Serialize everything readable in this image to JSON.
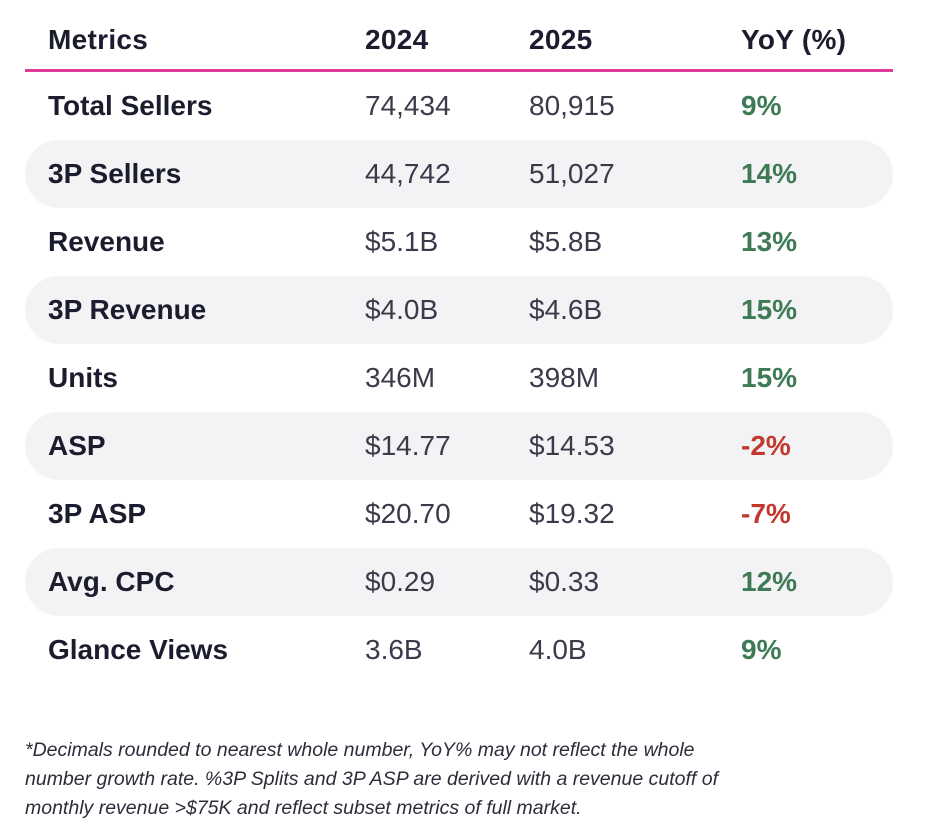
{
  "table": {
    "headers": [
      "Metrics",
      "2024",
      "2025",
      "YoY (%)"
    ],
    "rows": [
      {
        "metric": "Total Sellers",
        "y2024": "74,434",
        "y2025": "80,915",
        "yoy": "9%",
        "trend": "positive"
      },
      {
        "metric": "3P Sellers",
        "y2024": "44,742",
        "y2025": "51,027",
        "yoy": "14%",
        "trend": "positive"
      },
      {
        "metric": "Revenue",
        "y2024": "$5.1B",
        "y2025": "$5.8B",
        "yoy": "13%",
        "trend": "positive"
      },
      {
        "metric": "3P Revenue",
        "y2024": "$4.0B",
        "y2025": "$4.6B",
        "yoy": "15%",
        "trend": "positive"
      },
      {
        "metric": "Units",
        "y2024": "346M",
        "y2025": "398M",
        "yoy": "15%",
        "trend": "positive"
      },
      {
        "metric": "ASP",
        "y2024": "$14.77",
        "y2025": "$14.53",
        "yoy": "-2%",
        "trend": "negative"
      },
      {
        "metric": "3P ASP",
        "y2024": "$20.70",
        "y2025": "$19.32",
        "yoy": "-7%",
        "trend": "negative"
      },
      {
        "metric": "Avg. CPC",
        "y2024": "$0.29",
        "y2025": "$0.33",
        "yoy": "12%",
        "trend": "positive"
      },
      {
        "metric": "Glance Views",
        "y2024": "3.6B",
        "y2025": "4.0B",
        "yoy": "9%",
        "trend": "positive"
      }
    ]
  },
  "footnote": {
    "lines": [
      "*Decimals rounded to nearest whole number, YoY% may not reflect the whole",
      "number growth rate. %3P Splits and 3P ASP are derived with a revenue cutoff of",
      "monthly revenue >$75K and reflect subset metrics  of full market."
    ]
  },
  "colors": {
    "header_rule": "#e23c9a",
    "positive": "#3f7a56",
    "negative": "#c2382f",
    "row_shade": "#f3f3f5",
    "text": "#1b1c2e"
  }
}
